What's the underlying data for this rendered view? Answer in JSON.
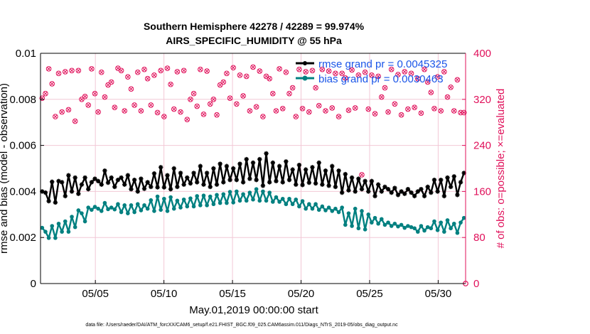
{
  "title_line1": "Southern Hemisphere 42278 / 42289 = 99.974%",
  "title_line2": "AIRS_SPECIFIC_HUMIDITY @ 55 hPa",
  "footer": "data file: /Users/raeder/DAI/ATM_forcXX/CAM6_setup/f.e21.FHIST_BGC.f09_025.CAM6assim.011/Diags_NTrS_2019-05/obs_diag_output.nc",
  "colors": {
    "rmse": "#000000",
    "bias": "#008080",
    "obs": "#e0105a",
    "grid": "#f2c8d6"
  },
  "chart_data": {
    "type": "line",
    "xlabel": "May.01,2019 00:00:00 start",
    "ylabel_left": "rmse and bias (model - observation)",
    "ylabel_right": "# of obs: o=possible; ×=evaluated",
    "xlim": [
      1.0,
      32.0
    ],
    "ylim_left": [
      0,
      0.01
    ],
    "ylim_right": [
      0,
      400
    ],
    "x_ticks": [
      5,
      10,
      15,
      20,
      25,
      30
    ],
    "x_tick_labels": [
      "05/05",
      "05/10",
      "05/15",
      "05/20",
      "05/25",
      "05/30"
    ],
    "y_left_ticks": [
      0,
      0.002,
      0.004,
      0.006,
      0.008,
      0.01
    ],
    "y_left_tick_labels": [
      "0",
      "0.002",
      "0.004",
      "0.006",
      "0.008",
      "0.01"
    ],
    "y_right_ticks": [
      0,
      80,
      160,
      240,
      320,
      400
    ],
    "y_right_tick_labels": [
      "0",
      "80",
      "160",
      "240",
      "320",
      "400"
    ],
    "grid": true,
    "legend_position": "top-right",
    "series": [
      {
        "name": "rmse grand pr = 0.0045325",
        "axis": "left",
        "values": [
          0.004,
          0.00395,
          0.00358,
          0.00442,
          0.00352,
          0.00445,
          0.0044,
          0.0038,
          0.0047,
          0.004,
          0.0046,
          0.0039,
          0.0043,
          0.0046,
          0.0041,
          0.0044,
          0.00455,
          0.00445,
          0.0043,
          0.0049,
          0.00438,
          0.0046,
          0.0042,
          0.0045,
          0.0046,
          0.0043,
          0.0047,
          0.0041,
          0.0045,
          0.004,
          0.00455,
          0.00412,
          0.0044,
          0.0042,
          0.00478,
          0.00418,
          0.00505,
          0.00418,
          0.0047,
          0.0041,
          0.005,
          0.0042,
          0.0048,
          0.0043,
          0.0046,
          0.00435,
          0.0048,
          0.0044,
          0.0051,
          0.0043,
          0.0048,
          0.0042,
          0.005,
          0.0043,
          0.0052,
          0.0044,
          0.0051,
          0.0045,
          0.005,
          0.0045,
          0.0052,
          0.0044,
          0.0054,
          0.00455,
          0.00525,
          0.0045,
          0.0054,
          0.00425,
          0.00565,
          0.0044,
          0.00525,
          0.00445,
          0.0051,
          0.0044,
          0.0053,
          0.0045,
          0.00495,
          0.0043,
          0.00515,
          0.00428,
          0.00495,
          0.00438,
          0.00505,
          0.00435,
          0.00525,
          0.0043,
          0.0049,
          0.00425,
          0.0051,
          0.0042,
          0.0049,
          0.00395,
          0.00475,
          0.00405,
          0.0046,
          0.004,
          0.00455,
          0.0041,
          0.00445,
          0.004,
          0.00445,
          0.0038,
          0.0043,
          0.004,
          0.0042,
          0.0041,
          0.00395,
          0.00415,
          0.00385,
          0.004,
          0.0039,
          0.0041,
          0.00395,
          0.0038,
          0.004,
          0.0041,
          0.0038,
          0.0042,
          0.00395,
          0.0045,
          0.004,
          0.0045,
          0.0038,
          0.0046,
          0.0042,
          0.00465,
          0.00385,
          0.0044,
          0.0048
        ]
      },
      {
        "name": "bias grand pr = 0.0030463",
        "axis": "left",
        "values": [
          0.00242,
          0.00225,
          0.00198,
          0.0025,
          0.00198,
          0.0026,
          0.00225,
          0.0027,
          0.00225,
          0.0029,
          0.00245,
          0.00318,
          0.00305,
          0.0027,
          0.0033,
          0.0032,
          0.00333,
          0.00325,
          0.00315,
          0.0035,
          0.00323,
          0.0033,
          0.00322,
          0.00345,
          0.0031,
          0.0034,
          0.00305,
          0.0034,
          0.0031,
          0.00345,
          0.00318,
          0.0034,
          0.00325,
          0.00362,
          0.00315,
          0.00378,
          0.0032,
          0.00368,
          0.00315,
          0.00375,
          0.00325,
          0.0036,
          0.0033,
          0.00365,
          0.00335,
          0.0037,
          0.00335,
          0.0038,
          0.0034,
          0.00382,
          0.0034,
          0.00378,
          0.00345,
          0.00385,
          0.0035,
          0.00388,
          0.0035,
          0.00398,
          0.00352,
          0.004,
          0.0036,
          0.00388,
          0.0036,
          0.00395,
          0.00365,
          0.0041,
          0.0036,
          0.004,
          0.0036,
          0.00395,
          0.00355,
          0.00375,
          0.00355,
          0.00368,
          0.00345,
          0.00368,
          0.00345,
          0.00365,
          0.00335,
          0.00358,
          0.00325,
          0.00345,
          0.00325,
          0.00345,
          0.0032,
          0.00335,
          0.00318,
          0.0033,
          0.00315,
          0.00325,
          0.0031,
          0.0033,
          0.00255,
          0.00305,
          0.0025,
          0.00325,
          0.0024,
          0.00315,
          0.00235,
          0.003,
          0.00265,
          0.00285,
          0.0026,
          0.0028,
          0.00255,
          0.00265,
          0.0025,
          0.0026,
          0.00248,
          0.00255,
          0.00242,
          0.0025,
          0.00245,
          0.0024,
          0.00225,
          0.0025,
          0.0023,
          0.00245,
          0.0024,
          0.0027,
          0.00232,
          0.00265,
          0.00225,
          0.00275,
          0.0024,
          0.0026,
          0.0022,
          0.00265,
          0.00285
        ]
      },
      {
        "name": "# of obs possible",
        "axis": "right",
        "values": [
          322,
          330,
          373,
          347,
          290,
          365,
          298,
          368,
          302,
          370,
          282,
          370,
          320,
          325,
          310,
          373,
          330,
          298,
          367,
          324,
          345,
          350,
          306,
          374,
          370,
          300,
          359,
          338,
          310,
          367,
          300,
          372,
          356,
          310,
          362,
          297,
          370,
          290,
          374,
          346,
          303,
          368,
          298,
          370,
          285,
          320,
          330,
          308,
          372,
          294,
          369,
          312,
          320,
          293,
          345,
          350,
          365,
          322,
          375,
          312,
          362,
          326,
          360,
          300,
          376,
          307,
          369,
          290,
          360,
          356,
          330,
          300,
          373,
          304,
          367,
          330,
          340,
          290,
          372,
          304,
          368,
          298,
          370,
          340,
          309,
          372,
          300,
          369,
          305,
          365,
          290,
          365,
          357,
          301,
          371,
          305,
          362,
          189,
          367,
          303,
          362,
          295,
          360,
          324,
          340,
          298,
          372,
          312,
          363,
          293,
          368,
          303,
          365,
          306,
          356,
          296,
          372,
          350,
          332,
          304,
          359,
          300,
          368,
          324,
          341,
          300,
          354,
          297,
          297
        ]
      },
      {
        "name": "# of obs evaluated",
        "axis": "right",
        "values": [
          322,
          330,
          373,
          347,
          290,
          365,
          298,
          368,
          302,
          370,
          282,
          370,
          320,
          325,
          310,
          373,
          330,
          298,
          367,
          324,
          345,
          350,
          306,
          374,
          370,
          300,
          359,
          338,
          310,
          367,
          300,
          372,
          356,
          310,
          362,
          297,
          370,
          290,
          374,
          346,
          303,
          368,
          298,
          370,
          285,
          320,
          330,
          308,
          372,
          294,
          369,
          312,
          320,
          293,
          345,
          350,
          365,
          322,
          375,
          312,
          362,
          326,
          360,
          300,
          376,
          307,
          369,
          290,
          360,
          356,
          330,
          300,
          373,
          304,
          367,
          330,
          340,
          290,
          372,
          304,
          368,
          298,
          370,
          340,
          309,
          372,
          300,
          369,
          305,
          365,
          290,
          365,
          357,
          301,
          371,
          305,
          362,
          189,
          367,
          303,
          362,
          295,
          360,
          324,
          340,
          298,
          372,
          312,
          363,
          293,
          368,
          303,
          365,
          306,
          356,
          296,
          372,
          350,
          332,
          304,
          359,
          300,
          368,
          324,
          341,
          300,
          354,
          297,
          297
        ]
      }
    ]
  }
}
